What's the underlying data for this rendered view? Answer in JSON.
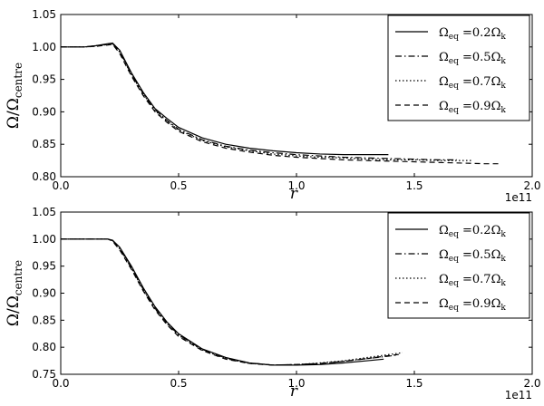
{
  "chart_data": [
    {
      "type": "line",
      "xlabel": "r",
      "ylabel": "Ω/Ω_centre",
      "x_offset_label": "1e11",
      "xlim": [
        0.0,
        2.0
      ],
      "ylim": [
        0.8,
        1.05
      ],
      "xticks": [
        "0.0",
        "0.5",
        "1.0",
        "1.5",
        "2.0"
      ],
      "yticks": [
        "0.80",
        "0.85",
        "0.90",
        "0.95",
        "1.00",
        "1.05"
      ],
      "legend_position": "top-right",
      "grid": false,
      "series": [
        {
          "name": "Ω_eq = 0.2Ω_k",
          "style": "solid",
          "points": [
            [
              0.0,
              1.0
            ],
            [
              0.1,
              1.0
            ],
            [
              0.15,
              1.002
            ],
            [
              0.2,
              1.005
            ],
            [
              0.22,
              1.006
            ],
            [
              0.25,
              0.995
            ],
            [
              0.3,
              0.96
            ],
            [
              0.35,
              0.93
            ],
            [
              0.4,
              0.905
            ],
            [
              0.45,
              0.89
            ],
            [
              0.5,
              0.876
            ],
            [
              0.6,
              0.86
            ],
            [
              0.7,
              0.85
            ],
            [
              0.8,
              0.844
            ],
            [
              0.9,
              0.84
            ],
            [
              1.0,
              0.837
            ],
            [
              1.1,
              0.835
            ],
            [
              1.2,
              0.834
            ],
            [
              1.3,
              0.834
            ],
            [
              1.39,
              0.834
            ]
          ]
        },
        {
          "name": "Ω_eq = 0.5Ω_k",
          "style": "dashdot",
          "points": [
            [
              0.0,
              1.0
            ],
            [
              0.1,
              1.0
            ],
            [
              0.15,
              1.002
            ],
            [
              0.2,
              1.004
            ],
            [
              0.22,
              1.005
            ],
            [
              0.25,
              0.993
            ],
            [
              0.3,
              0.958
            ],
            [
              0.35,
              0.928
            ],
            [
              0.4,
              0.903
            ],
            [
              0.45,
              0.887
            ],
            [
              0.5,
              0.873
            ],
            [
              0.6,
              0.857
            ],
            [
              0.7,
              0.847
            ],
            [
              0.8,
              0.841
            ],
            [
              0.9,
              0.837
            ],
            [
              1.0,
              0.834
            ],
            [
              1.1,
              0.832
            ],
            [
              1.2,
              0.83
            ],
            [
              1.3,
              0.829
            ],
            [
              1.4,
              0.828
            ],
            [
              1.5,
              0.827
            ],
            [
              1.6,
              0.826
            ],
            [
              1.68,
              0.826
            ]
          ]
        },
        {
          "name": "Ω_eq = 0.7Ω_k",
          "style": "dotted",
          "points": [
            [
              0.0,
              1.0
            ],
            [
              0.1,
              1.0
            ],
            [
              0.15,
              1.001
            ],
            [
              0.2,
              1.004
            ],
            [
              0.22,
              1.005
            ],
            [
              0.25,
              0.992
            ],
            [
              0.3,
              0.957
            ],
            [
              0.35,
              0.927
            ],
            [
              0.4,
              0.902
            ],
            [
              0.45,
              0.886
            ],
            [
              0.5,
              0.872
            ],
            [
              0.6,
              0.856
            ],
            [
              0.7,
              0.846
            ],
            [
              0.8,
              0.84
            ],
            [
              0.9,
              0.835
            ],
            [
              1.0,
              0.832
            ],
            [
              1.1,
              0.83
            ],
            [
              1.2,
              0.829
            ],
            [
              1.3,
              0.827
            ],
            [
              1.4,
              0.826
            ],
            [
              1.5,
              0.826
            ],
            [
              1.6,
              0.825
            ],
            [
              1.7,
              0.825
            ],
            [
              1.75,
              0.825
            ]
          ]
        },
        {
          "name": "Ω_eq = 0.9Ω_k",
          "style": "dashed",
          "points": [
            [
              0.0,
              1.0
            ],
            [
              0.1,
              1.0
            ],
            [
              0.15,
              1.001
            ],
            [
              0.2,
              1.003
            ],
            [
              0.22,
              1.004
            ],
            [
              0.25,
              0.99
            ],
            [
              0.3,
              0.955
            ],
            [
              0.35,
              0.925
            ],
            [
              0.4,
              0.9
            ],
            [
              0.45,
              0.884
            ],
            [
              0.5,
              0.87
            ],
            [
              0.6,
              0.854
            ],
            [
              0.7,
              0.844
            ],
            [
              0.8,
              0.838
            ],
            [
              0.9,
              0.833
            ],
            [
              1.0,
              0.83
            ],
            [
              1.1,
              0.828
            ],
            [
              1.2,
              0.826
            ],
            [
              1.3,
              0.825
            ],
            [
              1.4,
              0.824
            ],
            [
              1.5,
              0.823
            ],
            [
              1.6,
              0.822
            ],
            [
              1.7,
              0.821
            ],
            [
              1.8,
              0.82
            ],
            [
              1.87,
              0.82
            ]
          ]
        }
      ]
    },
    {
      "type": "line",
      "xlabel": "r",
      "ylabel": "Ω/Ω_centre",
      "x_offset_label": "1e11",
      "xlim": [
        0.0,
        2.0
      ],
      "ylim": [
        0.75,
        1.05
      ],
      "xticks": [
        "0.0",
        "0.5",
        "1.0",
        "1.5",
        "2.0"
      ],
      "yticks": [
        "0.75",
        "0.80",
        "0.85",
        "0.90",
        "0.95",
        "1.00",
        "1.05"
      ],
      "legend_position": "top-right",
      "grid": false,
      "series": [
        {
          "name": "Ω_eq = 0.2Ω_k",
          "style": "solid",
          "points": [
            [
              0.0,
              1.0
            ],
            [
              0.1,
              1.0
            ],
            [
              0.2,
              1.0
            ],
            [
              0.22,
              0.998
            ],
            [
              0.25,
              0.985
            ],
            [
              0.3,
              0.95
            ],
            [
              0.35,
              0.91
            ],
            [
              0.4,
              0.875
            ],
            [
              0.45,
              0.847
            ],
            [
              0.5,
              0.825
            ],
            [
              0.6,
              0.797
            ],
            [
              0.7,
              0.781
            ],
            [
              0.8,
              0.771
            ],
            [
              0.9,
              0.767
            ],
            [
              1.0,
              0.767
            ],
            [
              1.1,
              0.768
            ],
            [
              1.2,
              0.771
            ],
            [
              1.3,
              0.775
            ],
            [
              1.37,
              0.778
            ]
          ]
        },
        {
          "name": "Ω_eq = 0.5Ω_k",
          "style": "dashdot",
          "points": [
            [
              0.0,
              1.0
            ],
            [
              0.1,
              1.0
            ],
            [
              0.2,
              1.0
            ],
            [
              0.22,
              0.997
            ],
            [
              0.25,
              0.983
            ],
            [
              0.3,
              0.947
            ],
            [
              0.35,
              0.907
            ],
            [
              0.4,
              0.872
            ],
            [
              0.45,
              0.845
            ],
            [
              0.5,
              0.823
            ],
            [
              0.6,
              0.796
            ],
            [
              0.7,
              0.78
            ],
            [
              0.8,
              0.771
            ],
            [
              0.9,
              0.767
            ],
            [
              1.0,
              0.768
            ],
            [
              1.1,
              0.77
            ],
            [
              1.2,
              0.774
            ],
            [
              1.3,
              0.779
            ],
            [
              1.4,
              0.784
            ],
            [
              1.43,
              0.786
            ]
          ]
        },
        {
          "name": "Ω_eq = 0.7Ω_k",
          "style": "dotted",
          "points": [
            [
              0.0,
              1.0
            ],
            [
              0.1,
              1.0
            ],
            [
              0.2,
              1.0
            ],
            [
              0.22,
              0.997
            ],
            [
              0.25,
              0.982
            ],
            [
              0.3,
              0.946
            ],
            [
              0.35,
              0.906
            ],
            [
              0.4,
              0.871
            ],
            [
              0.45,
              0.844
            ],
            [
              0.5,
              0.822
            ],
            [
              0.6,
              0.795
            ],
            [
              0.7,
              0.779
            ],
            [
              0.8,
              0.77
            ],
            [
              0.9,
              0.767
            ],
            [
              1.0,
              0.768
            ],
            [
              1.1,
              0.771
            ],
            [
              1.2,
              0.775
            ],
            [
              1.3,
              0.781
            ],
            [
              1.4,
              0.787
            ],
            [
              1.45,
              0.79
            ]
          ]
        },
        {
          "name": "Ω_eq = 0.9Ω_k",
          "style": "dashed",
          "points": [
            [
              0.0,
              1.0
            ],
            [
              0.1,
              1.0
            ],
            [
              0.2,
              1.0
            ],
            [
              0.22,
              0.996
            ],
            [
              0.25,
              0.98
            ],
            [
              0.3,
              0.944
            ],
            [
              0.35,
              0.904
            ],
            [
              0.4,
              0.869
            ],
            [
              0.45,
              0.842
            ],
            [
              0.5,
              0.82
            ],
            [
              0.6,
              0.794
            ],
            [
              0.7,
              0.778
            ],
            [
              0.8,
              0.77
            ],
            [
              0.9,
              0.767
            ],
            [
              1.0,
              0.768
            ],
            [
              1.1,
              0.77
            ],
            [
              1.2,
              0.774
            ],
            [
              1.3,
              0.779
            ],
            [
              1.4,
              0.785
            ],
            [
              1.44,
              0.787
            ]
          ]
        }
      ]
    }
  ],
  "legend_text": [
    {
      "omega": "Ω",
      "sub": "eq",
      "eq": " =0.2Ω",
      "ksub": "k"
    },
    {
      "omega": "Ω",
      "sub": "eq",
      "eq": " =0.5Ω",
      "ksub": "k"
    },
    {
      "omega": "Ω",
      "sub": "eq",
      "eq": " =0.7Ω",
      "ksub": "k"
    },
    {
      "omega": "Ω",
      "sub": "eq",
      "eq": " =0.9Ω",
      "ksub": "k"
    }
  ],
  "ylabel_parts": {
    "main": "Ω/Ω",
    "sub": "centre"
  }
}
